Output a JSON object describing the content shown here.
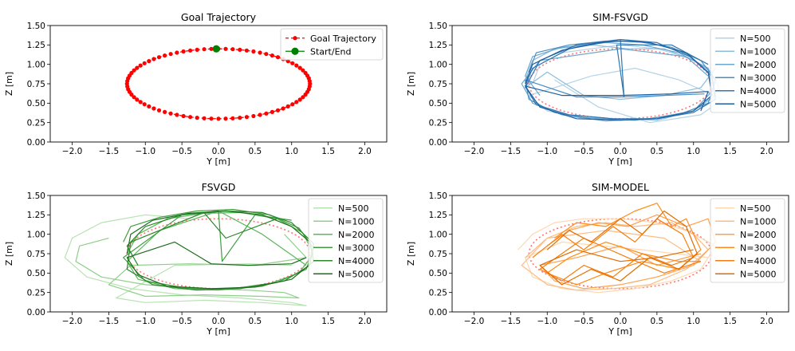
{
  "chart_data": [
    {
      "type": "line",
      "title": "Goal Trajectory",
      "xlabel": "Y [m]",
      "ylabel": "Z [m]",
      "xlim": [
        -2.3,
        2.3
      ],
      "ylim": [
        0.0,
        1.5
      ],
      "xticks": [
        -2.0,
        -1.5,
        -1.0,
        -0.5,
        0.0,
        0.5,
        1.0,
        1.5,
        2.0
      ],
      "yticks": [
        0.0,
        0.25,
        0.5,
        0.75,
        1.0,
        1.25,
        1.5
      ],
      "legend_position": "top-right",
      "series": [
        {
          "name": "Goal Trajectory",
          "kind": "ellipse",
          "center": [
            0.0,
            0.75
          ],
          "radii": [
            1.25,
            0.45
          ],
          "points": 80,
          "color": "#ff0000",
          "style": "dashed-dots"
        },
        {
          "name": "Start/End",
          "kind": "point",
          "x": [
            -0.03
          ],
          "y": [
            1.2
          ],
          "color": "#008000"
        }
      ]
    },
    {
      "type": "line",
      "title": "SIM-FSVGD",
      "xlabel": "Y [m]",
      "ylabel": "Z [m]",
      "xlim": [
        -2.3,
        2.3
      ],
      "ylim": [
        0.0,
        1.5
      ],
      "xticks": [
        -2.0,
        -1.5,
        -1.0,
        -0.5,
        0.0,
        0.5,
        1.0,
        1.5,
        2.0
      ],
      "yticks": [
        0.0,
        0.25,
        0.5,
        0.75,
        1.0,
        1.25,
        1.5
      ],
      "legend_position": "top-right",
      "reference": {
        "kind": "ellipse",
        "center": [
          0.0,
          0.75
        ],
        "radii": [
          1.25,
          0.45
        ],
        "color": "#ff0000"
      },
      "series": [
        {
          "name": "N=500",
          "color": "#b3d3e8",
          "x": [
            -1.2,
            -1.1,
            -0.8,
            -0.4,
            0.0,
            0.5,
            0.9,
            1.2,
            1.35,
            1.1,
            0.6,
            0.0,
            -0.5,
            -1.0,
            -1.25,
            -0.9,
            -0.4,
            0.2,
            0.8,
            1.4,
            1.1,
            0.4,
            -0.3,
            -0.9
          ],
          "y": [
            0.75,
            1.0,
            1.15,
            1.2,
            1.25,
            1.2,
            1.1,
            0.95,
            0.7,
            0.45,
            0.3,
            0.28,
            0.3,
            0.4,
            0.6,
            0.7,
            0.85,
            0.95,
            0.8,
            0.55,
            0.35,
            0.25,
            0.45,
            0.8
          ]
        },
        {
          "name": "N=1000",
          "color": "#8cbcdc",
          "x": [
            -1.3,
            -1.2,
            -0.9,
            -0.4,
            0.1,
            0.6,
            1.0,
            1.25,
            1.3,
            1.0,
            0.5,
            -0.1,
            -0.6,
            -1.1,
            -1.3,
            -1.0,
            -0.5,
            0.0,
            0.6,
            1.1,
            1.3
          ],
          "y": [
            0.8,
            1.05,
            1.2,
            1.25,
            1.2,
            1.2,
            1.05,
            0.9,
            0.6,
            0.4,
            0.28,
            0.3,
            0.32,
            0.45,
            0.7,
            0.9,
            0.6,
            0.55,
            0.6,
            0.7,
            0.95
          ]
        },
        {
          "name": "N=2000",
          "color": "#6aa6d0",
          "x": [
            -1.1,
            -1.3,
            -1.2,
            -0.8,
            -0.2,
            0.3,
            0.8,
            1.2,
            1.25,
            1.0,
            0.4,
            -0.2,
            -0.8,
            -1.2,
            -1.35,
            -1.1,
            0.0,
            0.9,
            1.2
          ],
          "y": [
            0.6,
            0.85,
            1.1,
            1.22,
            1.28,
            1.25,
            1.15,
            0.95,
            0.65,
            0.4,
            0.3,
            0.27,
            0.35,
            0.5,
            0.75,
            1.05,
            1.2,
            1.1,
            0.85
          ]
        },
        {
          "name": "N=3000",
          "color": "#4a8fc2",
          "x": [
            -1.25,
            -1.15,
            -0.7,
            -0.2,
            0.2,
            0.7,
            1.1,
            1.3,
            1.2,
            0.8,
            0.2,
            -0.4,
            -0.9,
            -1.25,
            -1.3,
            -0.6,
            0.0,
            0.6,
            1.15
          ],
          "y": [
            0.9,
            1.15,
            1.25,
            1.3,
            1.3,
            1.22,
            1.05,
            0.8,
            0.5,
            0.35,
            0.28,
            0.3,
            0.38,
            0.55,
            0.8,
            0.58,
            0.58,
            0.6,
            0.62
          ]
        },
        {
          "name": "N=4000",
          "color": "#2f76b2",
          "x": [
            -1.3,
            -1.1,
            -0.6,
            0.0,
            0.5,
            0.95,
            1.25,
            1.3,
            1.0,
            0.5,
            -0.1,
            -0.7,
            -1.15,
            -1.3,
            -1.2,
            -0.7,
            0.0,
            0.05,
            -0.05,
            0.7,
            1.2
          ],
          "y": [
            0.7,
            1.05,
            1.25,
            1.32,
            1.28,
            1.1,
            0.85,
            0.55,
            0.38,
            0.3,
            0.3,
            0.35,
            0.48,
            0.72,
            0.95,
            1.2,
            1.32,
            0.58,
            1.25,
            1.25,
            1.0
          ]
        },
        {
          "name": "N=5000",
          "color": "#1f5fa0",
          "x": [
            -1.3,
            -1.2,
            -0.8,
            -0.3,
            0.0,
            0.4,
            0.9,
            1.2,
            1.25,
            1.0,
            0.5,
            0.0,
            -0.6,
            -1.1,
            -1.3,
            -0.8,
            0.0,
            0.7,
            1.2,
            1.1
          ],
          "y": [
            0.75,
            1.0,
            1.18,
            1.28,
            1.3,
            1.28,
            1.15,
            0.9,
            0.6,
            0.4,
            0.3,
            0.28,
            0.3,
            0.45,
            0.72,
            0.6,
            0.6,
            0.62,
            0.65,
            0.4
          ]
        }
      ]
    },
    {
      "type": "line",
      "title": "FSVGD",
      "xlabel": "Y [m]",
      "ylabel": "Z [m]",
      "xlim": [
        -2.3,
        2.3
      ],
      "ylim": [
        0.0,
        1.5
      ],
      "xticks": [
        -2.0,
        -1.5,
        -1.0,
        -0.5,
        0.0,
        0.5,
        1.0,
        1.5,
        2.0
      ],
      "yticks": [
        0.0,
        0.25,
        0.5,
        0.75,
        1.0,
        1.25,
        1.5
      ],
      "legend_position": "top-right",
      "reference": {
        "kind": "ellipse",
        "center": [
          0.0,
          0.75
        ],
        "radii": [
          1.25,
          0.45
        ],
        "color": "#ff0000"
      },
      "series": [
        {
          "name": "N=500",
          "color": "#b7e2b1",
          "x": [
            -0.4,
            -1.0,
            -1.6,
            -2.0,
            -2.1,
            -1.8,
            -1.2,
            -0.5,
            0.3,
            1.0,
            1.2,
            0.6,
            -0.2,
            -1.0,
            -1.4,
            -0.6,
            0.4,
            1.0
          ],
          "y": [
            1.2,
            1.25,
            1.15,
            0.95,
            0.7,
            0.45,
            0.3,
            0.22,
            0.18,
            0.12,
            0.08,
            0.12,
            0.15,
            0.12,
            0.18,
            0.6,
            0.62,
            0.6
          ]
        },
        {
          "name": "N=1000",
          "color": "#8fd08a",
          "x": [
            -1.5,
            -1.9,
            -1.95,
            -1.6,
            -1.0,
            -0.3,
            0.4,
            0.9,
            1.1,
            0.6,
            -0.2,
            -1.0,
            -1.5,
            -1.2,
            -0.4,
            0.5,
            1.2,
            0.9
          ],
          "y": [
            0.95,
            0.85,
            0.65,
            0.45,
            0.35,
            0.3,
            0.28,
            0.25,
            0.18,
            0.2,
            0.22,
            0.2,
            0.35,
            0.6,
            0.62,
            0.6,
            0.7,
            1.0
          ]
        },
        {
          "name": "N=2000",
          "color": "#5cb85c",
          "x": [
            -1.25,
            -1.1,
            -0.7,
            -0.2,
            0.3,
            0.8,
            1.15,
            1.3,
            1.1,
            0.6,
            0.0,
            -0.6,
            -1.1,
            -1.25,
            -0.8,
            0.0,
            0.6,
            1.2
          ],
          "y": [
            0.75,
            1.0,
            1.2,
            1.27,
            1.28,
            1.2,
            1.02,
            0.75,
            0.5,
            0.33,
            0.28,
            0.3,
            0.42,
            0.65,
            1.05,
            1.3,
            1.0,
            0.6
          ]
        },
        {
          "name": "N=3000",
          "color": "#3e9e3e",
          "x": [
            -1.3,
            -1.2,
            -0.8,
            -0.3,
            0.2,
            0.7,
            1.1,
            1.3,
            1.2,
            0.8,
            0.2,
            -0.4,
            -1.0,
            -1.3,
            -0.5,
            0.0,
            0.05,
            0.5,
            1.0
          ],
          "y": [
            0.9,
            1.1,
            1.22,
            1.3,
            1.32,
            1.25,
            1.08,
            0.82,
            0.55,
            0.38,
            0.3,
            0.3,
            0.4,
            0.7,
            1.25,
            1.3,
            0.65,
            1.25,
            1.18
          ]
        },
        {
          "name": "N=4000",
          "color": "#2a872a",
          "x": [
            -1.1,
            -1.25,
            -1.0,
            -0.5,
            0.1,
            0.6,
            1.0,
            1.3,
            1.25,
            0.9,
            0.3,
            -0.3,
            -0.9,
            -1.25,
            -1.2,
            -0.2,
            0.1,
            0.8
          ],
          "y": [
            0.6,
            0.85,
            1.1,
            1.25,
            1.3,
            1.28,
            1.15,
            0.88,
            0.6,
            0.4,
            0.3,
            0.28,
            0.35,
            0.55,
            0.9,
            1.28,
            0.95,
            1.2
          ]
        },
        {
          "name": "N=5000",
          "color": "#1b6e1b",
          "x": [
            -1.25,
            -1.2,
            -0.9,
            -0.4,
            0.1,
            0.6,
            1.0,
            1.25,
            1.3,
            1.0,
            0.5,
            -0.1,
            -0.7,
            -1.1,
            -1.25,
            -0.6,
            -0.1,
            0.4,
            1.0,
            1.2
          ],
          "y": [
            0.75,
            1.0,
            1.18,
            1.27,
            1.3,
            1.25,
            1.1,
            0.9,
            0.65,
            0.42,
            0.32,
            0.3,
            0.33,
            0.48,
            0.7,
            0.9,
            0.62,
            0.6,
            0.62,
            0.7
          ]
        }
      ]
    },
    {
      "type": "line",
      "title": "SIM-MODEL",
      "xlabel": "Y [m]",
      "ylabel": "Z [m]",
      "xlim": [
        -2.3,
        2.3
      ],
      "ylim": [
        0.0,
        1.5
      ],
      "xticks": [
        -2.0,
        -1.5,
        -1.0,
        -0.5,
        0.0,
        0.5,
        1.0,
        1.5,
        2.0
      ],
      "yticks": [
        0.0,
        0.25,
        0.5,
        0.75,
        1.0,
        1.25,
        1.5
      ],
      "legend_position": "top-right",
      "reference": {
        "kind": "ellipse",
        "center": [
          0.0,
          0.75
        ],
        "radii": [
          1.25,
          0.45
        ],
        "color": "#ff0000"
      },
      "series": [
        {
          "name": "N=500",
          "color": "#ffd7b0",
          "x": [
            -1.4,
            -1.2,
            -0.9,
            -0.5,
            0.0,
            0.5,
            0.9,
            1.3,
            1.1,
            0.7,
            0.2,
            -0.3,
            -0.8,
            -1.2,
            -1.3,
            -0.8,
            0.3,
            1.2
          ],
          "y": [
            0.8,
            1.0,
            1.15,
            1.2,
            1.2,
            1.15,
            1.05,
            0.85,
            0.55,
            0.4,
            0.3,
            0.25,
            0.3,
            0.45,
            0.7,
            0.9,
            0.8,
            0.7
          ]
        },
        {
          "name": "N=1000",
          "color": "#ffbc80",
          "x": [
            -1.3,
            -1.0,
            -0.6,
            -0.2,
            0.2,
            0.7,
            1.0,
            1.2,
            0.9,
            0.4,
            -0.1,
            -0.6,
            -1.0,
            -1.35,
            -1.0,
            -0.2,
            0.6,
            1.1
          ],
          "y": [
            0.7,
            0.95,
            1.1,
            1.15,
            1.1,
            1.15,
            1.0,
            0.8,
            0.55,
            0.35,
            0.3,
            0.28,
            0.35,
            0.6,
            0.95,
            1.05,
            0.95,
            0.65
          ]
        },
        {
          "name": "N=2000",
          "color": "#ffa04d",
          "x": [
            -1.0,
            -0.7,
            -0.3,
            0.1,
            0.5,
            0.9,
            1.2,
            1.3,
            1.0,
            0.5,
            0.0,
            -0.5,
            -0.9,
            -1.1,
            -0.6,
            0.0,
            0.5,
            1.1
          ],
          "y": [
            0.85,
            1.05,
            1.15,
            1.1,
            1.25,
            1.1,
            1.2,
            0.9,
            0.6,
            0.45,
            0.35,
            0.3,
            0.4,
            0.6,
            0.7,
            0.85,
            0.6,
            0.75
          ]
        },
        {
          "name": "N=3000",
          "color": "#ff8c1a",
          "x": [
            -0.9,
            -0.6,
            -0.2,
            0.2,
            0.5,
            0.7,
            0.9,
            1.1,
            0.8,
            0.3,
            -0.2,
            -0.6,
            -1.0,
            -0.7,
            -0.2,
            0.3,
            0.8,
            1.1
          ],
          "y": [
            0.95,
            1.15,
            1.1,
            1.3,
            1.4,
            1.1,
            1.2,
            0.8,
            0.55,
            0.65,
            0.5,
            0.35,
            0.5,
            0.7,
            0.9,
            0.75,
            0.65,
            0.65
          ]
        },
        {
          "name": "N=4000",
          "color": "#f57e0e",
          "x": [
            -1.2,
            -0.8,
            -0.5,
            -0.1,
            0.2,
            0.5,
            0.85,
            1.0,
            0.7,
            0.3,
            -0.1,
            -0.5,
            -0.8,
            -1.1,
            -0.5,
            0.1,
            0.6,
            1.1
          ],
          "y": [
            0.7,
            1.0,
            0.8,
            1.1,
            0.9,
            1.2,
            1.0,
            0.7,
            0.6,
            0.75,
            0.45,
            0.6,
            0.4,
            0.55,
            0.95,
            0.7,
            0.5,
            0.65
          ]
        },
        {
          "name": "N=5000",
          "color": "#e06c00",
          "x": [
            -1.0,
            -0.7,
            -0.4,
            0.0,
            0.3,
            0.6,
            0.9,
            1.05,
            0.8,
            0.4,
            0.0,
            -0.4,
            -0.8,
            -1.1,
            -0.6,
            0.0,
            0.5,
            1.0
          ],
          "y": [
            0.8,
            1.05,
            0.9,
            1.2,
            1.0,
            1.3,
            1.1,
            0.75,
            0.55,
            0.7,
            0.4,
            0.55,
            0.35,
            0.6,
            0.8,
            0.65,
            0.7,
            0.8
          ]
        }
      ]
    }
  ]
}
